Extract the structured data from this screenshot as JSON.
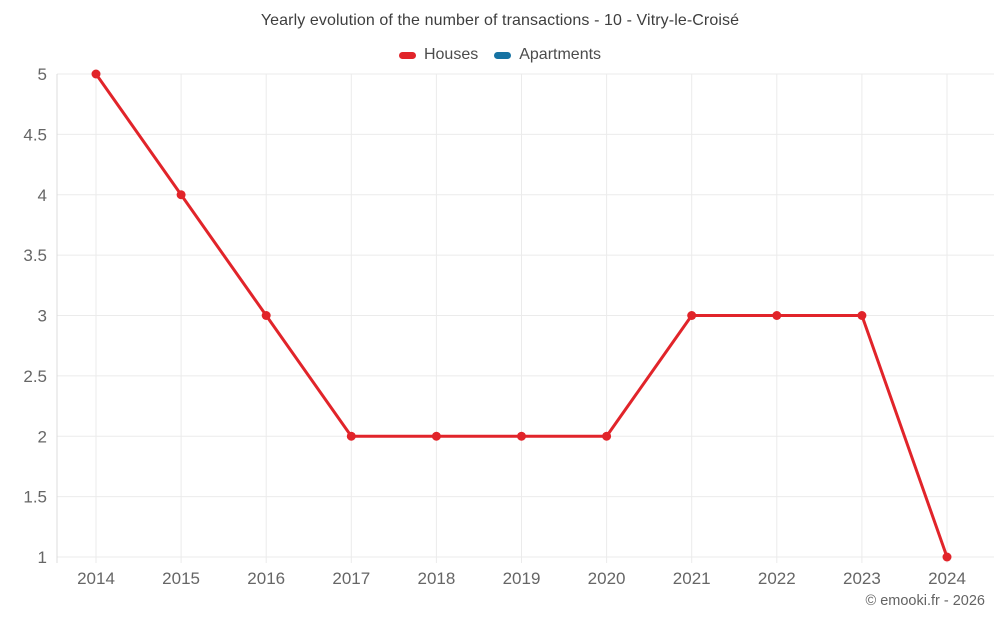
{
  "chart": {
    "title": "Yearly evolution of the number of transactions - 10 - Vitry-le-Croisé"
  },
  "legend": {
    "items": [
      {
        "label": "Houses",
        "color": "#e1242a",
        "icon": "legend-swatch-red"
      },
      {
        "label": "Apartments",
        "color": "#1673a3",
        "icon": "legend-swatch-blue"
      }
    ]
  },
  "footer": {
    "text": "© emooki.fr - 2026"
  },
  "chart_data": {
    "type": "line",
    "title": "Yearly evolution of the number of transactions - 10 - Vitry-le-Croisé",
    "categories": [
      "2014",
      "2015",
      "2016",
      "2017",
      "2018",
      "2019",
      "2020",
      "2021",
      "2022",
      "2023",
      "2024"
    ],
    "series": [
      {
        "name": "Houses",
        "color": "#e1242a",
        "values": [
          5,
          4,
          3,
          2,
          2,
          2,
          2,
          3,
          3,
          3,
          1
        ]
      },
      {
        "name": "Apartments",
        "color": "#1673a3",
        "values": []
      }
    ],
    "xlabel": "",
    "ylabel": "",
    "ylim": [
      1,
      5
    ],
    "yticks": [
      1,
      1.5,
      2,
      2.5,
      3,
      3.5,
      4,
      4.5,
      5
    ],
    "grid": true,
    "legend_position": "top",
    "marker": "circle",
    "grid_color": "#ebebeb",
    "axis_color": "#dcdcdc",
    "tick_label_color": "#666666"
  }
}
